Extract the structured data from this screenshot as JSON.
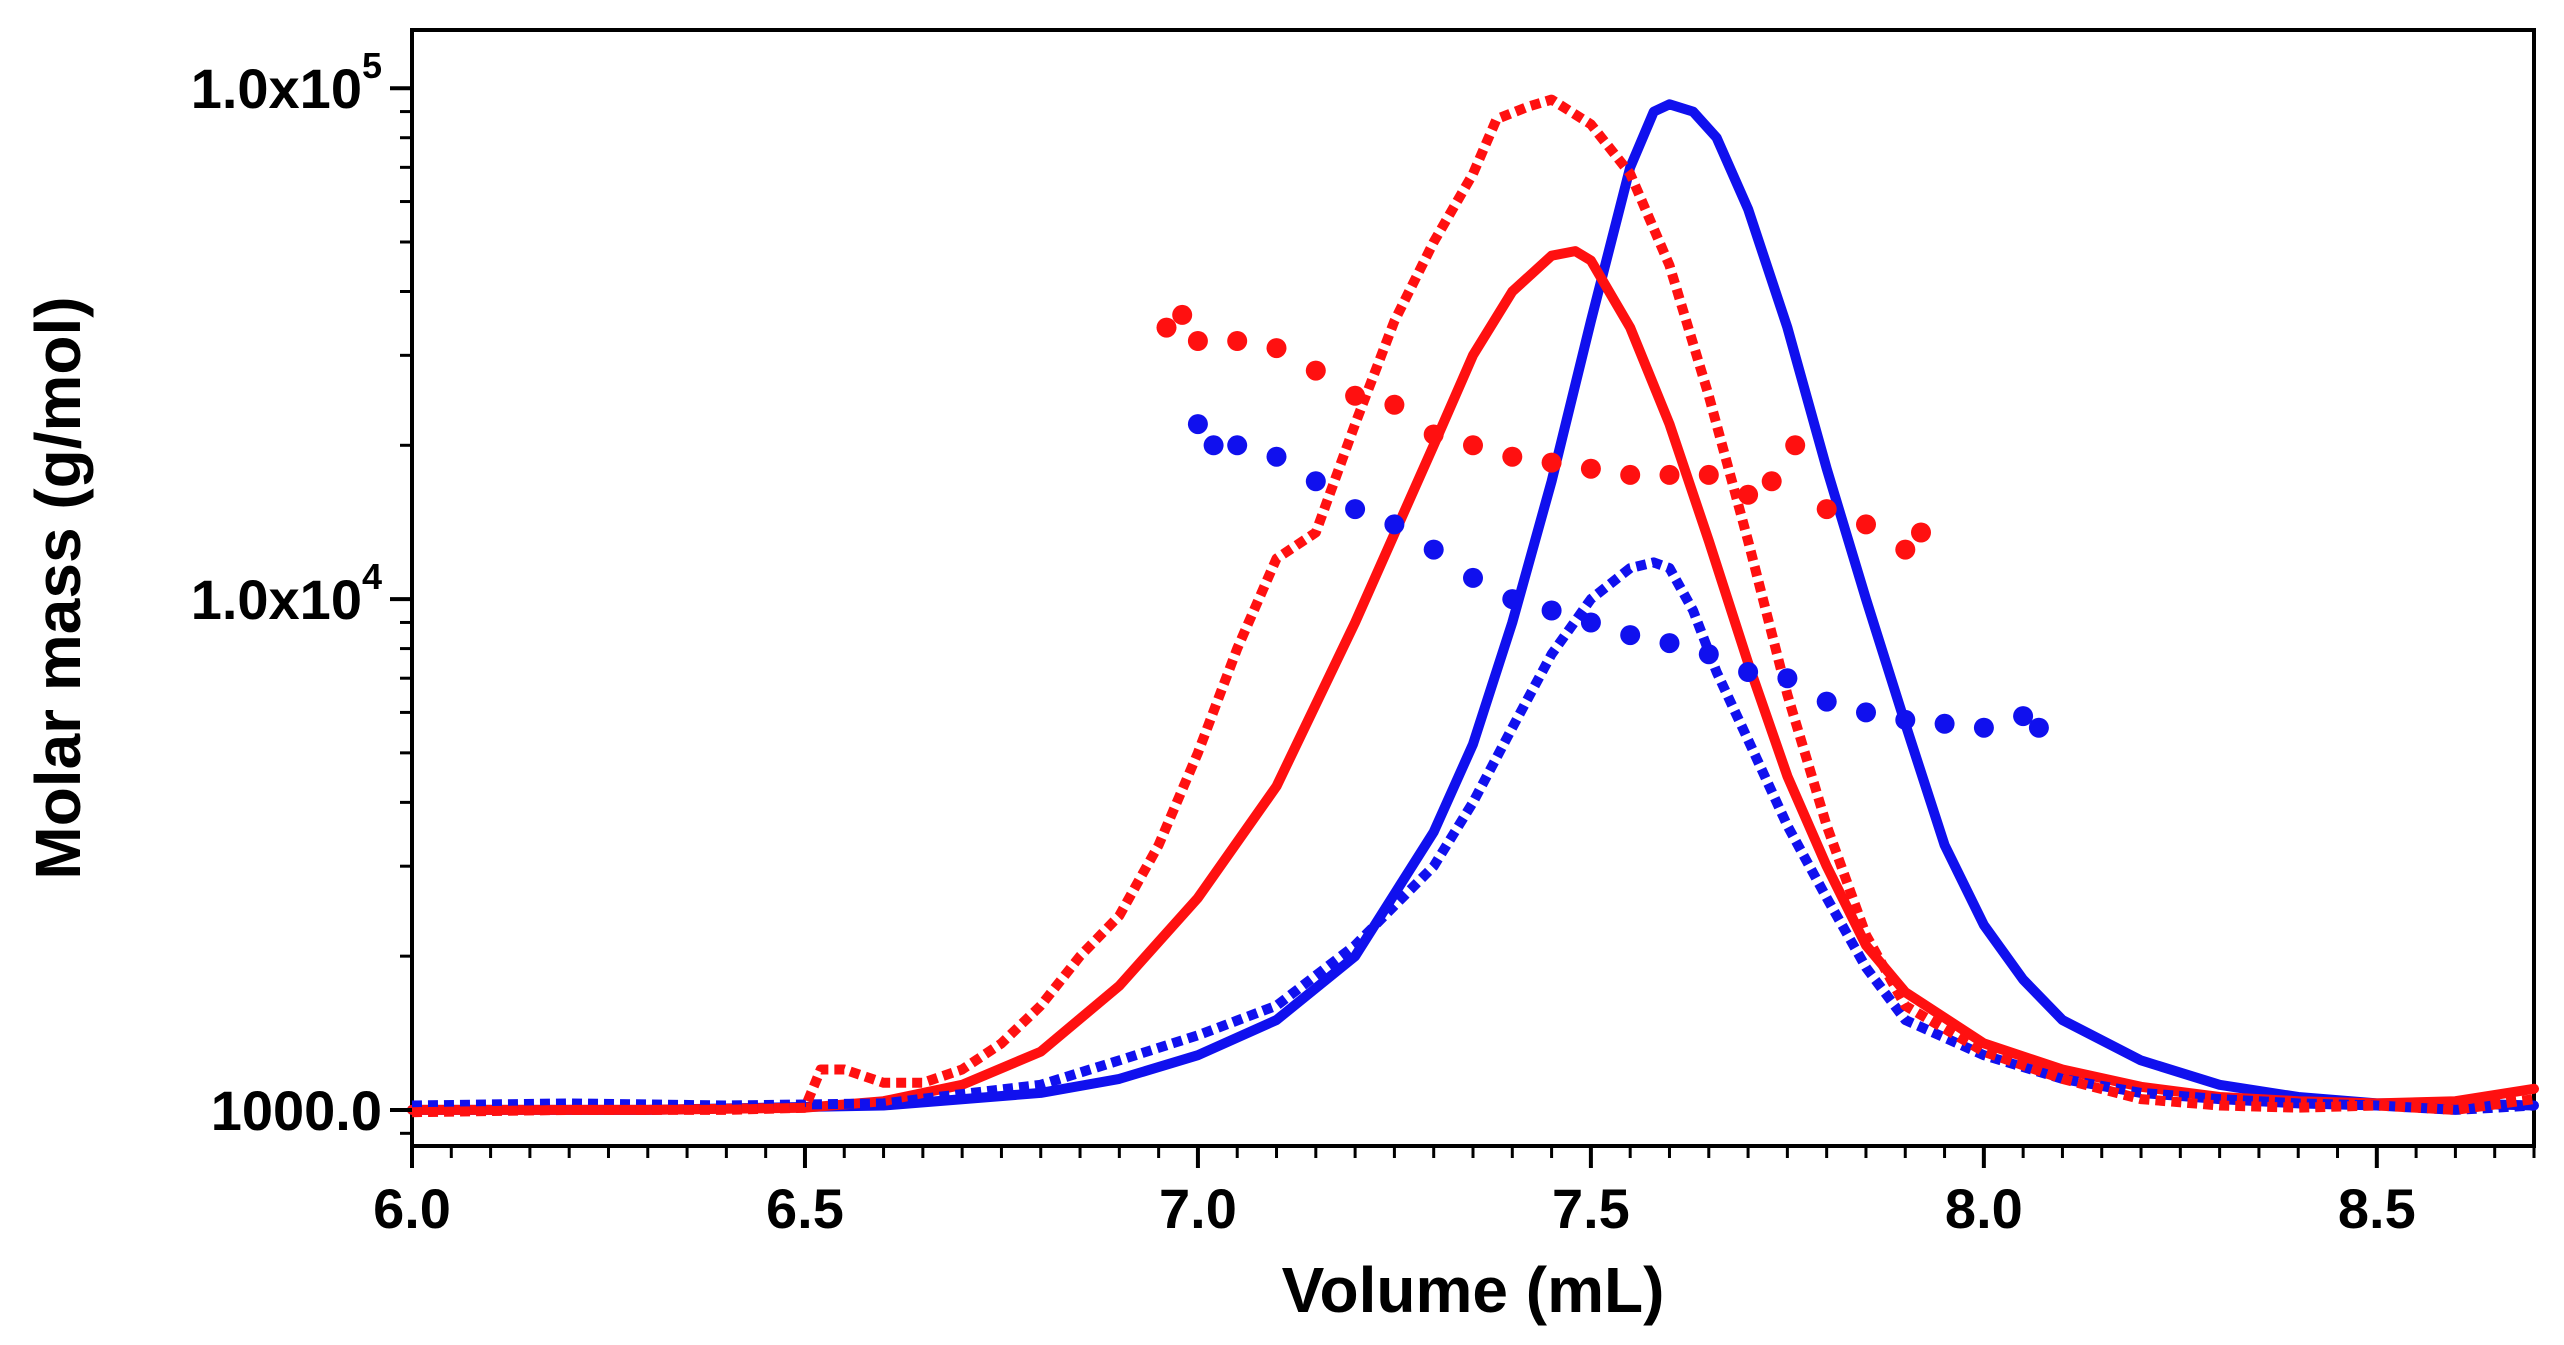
{
  "chart_data": {
    "type": "line",
    "xlabel": "Volume (mL)",
    "ylabel": "Molar mass (g/mol)",
    "xlim": [
      6.0,
      8.7
    ],
    "ylim": [
      850,
      130000
    ],
    "yscale": "log",
    "grid": false,
    "legend": "none",
    "x_ticks": [
      {
        "value": 6.0,
        "label": "6.0"
      },
      {
        "value": 6.5,
        "label": "6.5"
      },
      {
        "value": 7.0,
        "label": "7.0"
      },
      {
        "value": 7.5,
        "label": "7.5"
      },
      {
        "value": 8.0,
        "label": "8.0"
      },
      {
        "value": 8.5,
        "label": "8.5"
      }
    ],
    "y_ticks": [
      {
        "value": 1000,
        "mantissa": "1000.0",
        "exponent": ""
      },
      {
        "value": 10000,
        "mantissa": "1.0x10",
        "exponent": "4"
      },
      {
        "value": 100000,
        "mantissa": "1.0x10",
        "exponent": "5"
      }
    ],
    "series": [
      {
        "name": "blue-solid",
        "color": "#1010ee",
        "style": "solid",
        "x": [
          6.0,
          6.3,
          6.6,
          6.8,
          6.9,
          7.0,
          7.1,
          7.2,
          7.3,
          7.35,
          7.4,
          7.45,
          7.5,
          7.55,
          7.58,
          7.6,
          7.63,
          7.66,
          7.7,
          7.75,
          7.8,
          7.85,
          7.9,
          7.95,
          8.0,
          8.05,
          8.1,
          8.2,
          8.3,
          8.4,
          8.5,
          8.6,
          8.7
        ],
        "y": [
          1000,
          1000,
          1020,
          1080,
          1150,
          1280,
          1500,
          2000,
          3500,
          5200,
          9000,
          17000,
          35000,
          70000,
          90000,
          93000,
          90000,
          80000,
          58000,
          34000,
          18000,
          10000,
          5700,
          3300,
          2300,
          1800,
          1500,
          1250,
          1120,
          1060,
          1030,
          1030,
          1020
        ]
      },
      {
        "name": "red-solid",
        "color": "#ff1010",
        "style": "solid",
        "x": [
          6.0,
          6.3,
          6.5,
          6.6,
          6.7,
          6.8,
          6.9,
          7.0,
          7.1,
          7.2,
          7.3,
          7.35,
          7.4,
          7.45,
          7.48,
          7.5,
          7.55,
          7.6,
          7.65,
          7.7,
          7.75,
          7.8,
          7.85,
          7.9,
          8.0,
          8.1,
          8.2,
          8.3,
          8.4,
          8.5,
          8.6,
          8.7
        ],
        "y": [
          1000,
          1000,
          1010,
          1040,
          1120,
          1300,
          1750,
          2600,
          4300,
          9000,
          20000,
          30000,
          40000,
          47000,
          48000,
          46000,
          34000,
          22000,
          13000,
          7500,
          4500,
          3000,
          2100,
          1700,
          1350,
          1200,
          1110,
          1060,
          1040,
          1030,
          1040,
          1100
        ]
      },
      {
        "name": "blue-dotted",
        "color": "#1010ee",
        "style": "dotted",
        "x": [
          6.0,
          6.2,
          6.4,
          6.6,
          6.8,
          6.9,
          7.0,
          7.1,
          7.2,
          7.3,
          7.35,
          7.4,
          7.45,
          7.5,
          7.55,
          7.58,
          7.6,
          7.63,
          7.66,
          7.7,
          7.75,
          7.8,
          7.85,
          7.9,
          8.0,
          8.1,
          8.2,
          8.3,
          8.4,
          8.5,
          8.6,
          8.7
        ],
        "y": [
          1020,
          1030,
          1020,
          1030,
          1120,
          1250,
          1400,
          1600,
          2100,
          3000,
          4000,
          5600,
          7800,
          10000,
          11500,
          11800,
          11500,
          9500,
          7200,
          5300,
          3600,
          2600,
          1900,
          1500,
          1280,
          1150,
          1080,
          1050,
          1030,
          1020,
          1000,
          1020
        ]
      },
      {
        "name": "red-dotted",
        "color": "#ff1010",
        "style": "dotted",
        "x": [
          6.0,
          6.2,
          6.4,
          6.5,
          6.52,
          6.55,
          6.6,
          6.65,
          6.7,
          6.75,
          6.8,
          6.85,
          6.9,
          6.95,
          7.0,
          7.05,
          7.1,
          7.15,
          7.2,
          7.25,
          7.3,
          7.35,
          7.38,
          7.42,
          7.45,
          7.5,
          7.55,
          7.6,
          7.65,
          7.7,
          7.75,
          7.8,
          7.85,
          7.9,
          8.0,
          8.1,
          8.2,
          8.3,
          8.4,
          8.5,
          8.6,
          8.7
        ],
        "y": [
          990,
          1000,
          1000,
          1010,
          1200,
          1200,
          1130,
          1130,
          1200,
          1350,
          1600,
          2000,
          2400,
          3300,
          5000,
          8000,
          12000,
          13500,
          22000,
          35000,
          50000,
          68000,
          87000,
          92000,
          95000,
          85000,
          68000,
          45000,
          25000,
          13000,
          6500,
          3600,
          2200,
          1600,
          1300,
          1150,
          1050,
          1020,
          1010,
          1020,
          1000,
          1050
        ]
      },
      {
        "name": "red-dots",
        "color": "#ff1010",
        "style": "markers",
        "x": [
          6.96,
          6.98,
          7.0,
          7.05,
          7.1,
          7.15,
          7.2,
          7.25,
          7.3,
          7.35,
          7.4,
          7.45,
          7.5,
          7.55,
          7.6,
          7.65,
          7.7,
          7.73,
          7.76,
          7.8,
          7.85,
          7.9,
          7.92
        ],
        "y": [
          34000,
          36000,
          32000,
          32000,
          31000,
          28000,
          25000,
          24000,
          21000,
          20000,
          19000,
          18500,
          18000,
          17500,
          17500,
          17500,
          16000,
          17000,
          20000,
          15000,
          14000,
          12500,
          13500
        ]
      },
      {
        "name": "blue-dots",
        "color": "#1010ee",
        "style": "markers",
        "x": [
          7.0,
          7.02,
          7.05,
          7.1,
          7.15,
          7.2,
          7.25,
          7.3,
          7.35,
          7.4,
          7.45,
          7.5,
          7.55,
          7.6,
          7.65,
          7.7,
          7.75,
          7.8,
          7.85,
          7.9,
          7.95,
          8.0,
          8.05,
          8.07
        ],
        "y": [
          22000,
          20000,
          20000,
          19000,
          17000,
          15000,
          14000,
          12500,
          11000,
          10000,
          9500,
          9000,
          8500,
          8200,
          7800,
          7200,
          7000,
          6300,
          6000,
          5800,
          5700,
          5600,
          5900,
          5600
        ]
      }
    ]
  }
}
